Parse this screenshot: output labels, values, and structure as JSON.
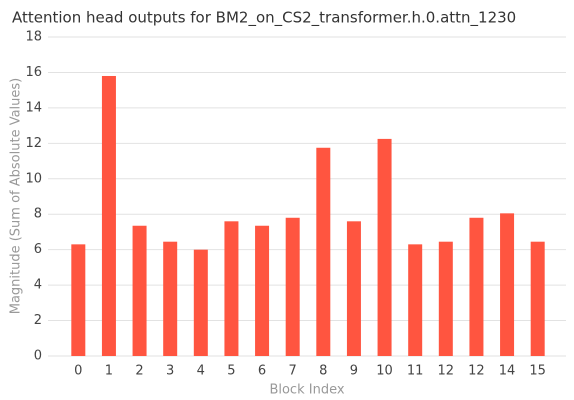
{
  "chart_data": {
    "type": "bar",
    "title": "Attention head outputs for BM2_on_CS2_transformer.h.0.attn_1230",
    "x_label": "Block Index",
    "y_label": "Magnitude (Sum of Absolute Values)",
    "categories": [
      "0",
      "1",
      "2",
      "3",
      "4",
      "5",
      "6",
      "7",
      "8",
      "9",
      "10",
      "11",
      "12",
      "12",
      "14",
      "15"
    ],
    "values": [
      6.3,
      15.8,
      7.35,
      6.45,
      6.0,
      7.6,
      7.35,
      7.8,
      11.75,
      7.6,
      12.25,
      6.3,
      6.45,
      7.8,
      8.05,
      6.45
    ],
    "color": "#ff5540",
    "ylim": [
      0,
      18
    ],
    "yticks": [
      0,
      2,
      4,
      6,
      8,
      10,
      12,
      14,
      16,
      18
    ],
    "grid": true
  }
}
